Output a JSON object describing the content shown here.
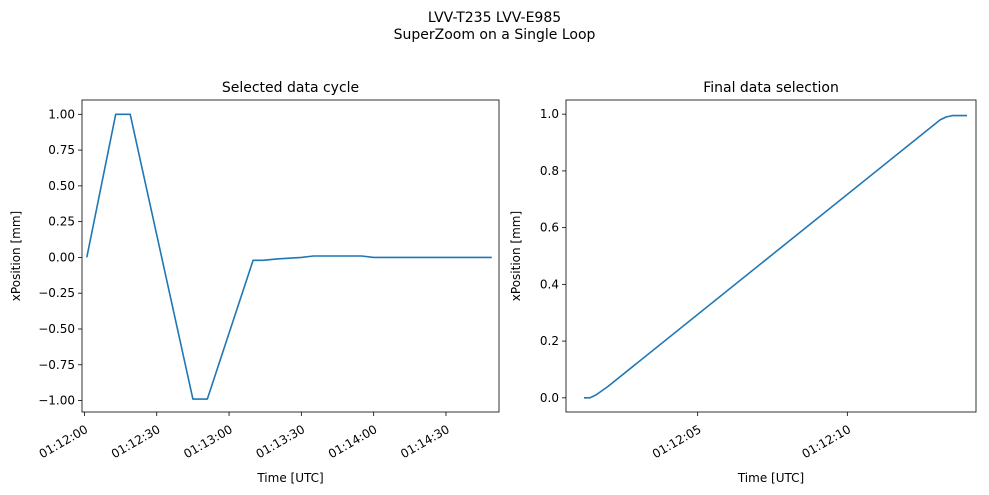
{
  "suptitle": {
    "line1": "LVV-T235 LVV-E985",
    "line2": "SuperZoom on a Single Loop"
  },
  "chart_data": [
    {
      "type": "line",
      "title": "Selected data cycle",
      "xlabel": "Time [UTC]",
      "ylabel": "xPosition [mm]",
      "x_unit": "time (HH:MM:SS UTC)",
      "xlim": [
        "01:11:59",
        "01:14:52"
      ],
      "ylim": [
        -1.08,
        1.1
      ],
      "xticks": [
        "01:12:00",
        "01:12:30",
        "01:13:00",
        "01:13:30",
        "01:14:00",
        "01:14:30"
      ],
      "yticks": [
        "1.00",
        "0.75",
        "0.50",
        "0.25",
        "0.00",
        "−0.25",
        "−0.50",
        "−0.75",
        "−1.00"
      ],
      "ytick_values": [
        1.0,
        0.75,
        0.5,
        0.25,
        0.0,
        -0.25,
        -0.5,
        -0.75,
        -1.0
      ],
      "grid": false,
      "color": "#1f77b4",
      "series": [
        {
          "x": [
            "01:12:01",
            "01:12:13",
            "01:12:19",
            "01:12:45",
            "01:12:51",
            "01:13:10",
            "01:13:12",
            "01:13:14",
            "01:13:20",
            "01:13:30",
            "01:13:35",
            "01:13:40",
            "01:13:45",
            "01:13:50",
            "01:13:55",
            "01:14:00",
            "01:14:05",
            "01:14:10",
            "01:14:16",
            "01:14:20",
            "01:14:25",
            "01:14:30",
            "01:14:40",
            "01:14:49"
          ],
          "y": [
            0.0,
            1.0,
            1.0,
            -0.99,
            -0.99,
            -0.02,
            -0.02,
            -0.02,
            -0.01,
            0.0,
            0.01,
            0.01,
            0.01,
            0.01,
            0.01,
            0.0,
            0.0,
            0.0,
            0.0,
            0.0,
            0.0,
            0.0,
            0.0,
            0.0
          ]
        }
      ]
    },
    {
      "type": "line",
      "title": "Final data selection",
      "xlabel": "Time [UTC]",
      "ylabel": "xPosition [mm]",
      "x_unit": "time (HH:MM:SS UTC)",
      "xlim": [
        "01:12:00.6",
        "01:12:14.3"
      ],
      "ylim": [
        -0.05,
        1.05
      ],
      "xticks": [
        "01:12:05",
        "01:12:10"
      ],
      "yticks": [
        "1.0",
        "0.8",
        "0.6",
        "0.4",
        "0.2",
        "0.0"
      ],
      "ytick_values": [
        1.0,
        0.8,
        0.6,
        0.4,
        0.2,
        0.0
      ],
      "grid": false,
      "color": "#1f77b4",
      "series": [
        {
          "x": [
            "01:12:01.2",
            "01:12:01.4",
            "01:12:01.6",
            "01:12:02.0",
            "01:12:13.1",
            "01:12:13.3",
            "01:12:13.5",
            "01:12:14.0"
          ],
          "y": [
            0.0,
            0.0,
            0.01,
            0.04,
            0.98,
            0.99,
            0.995,
            0.995
          ]
        }
      ]
    }
  ]
}
